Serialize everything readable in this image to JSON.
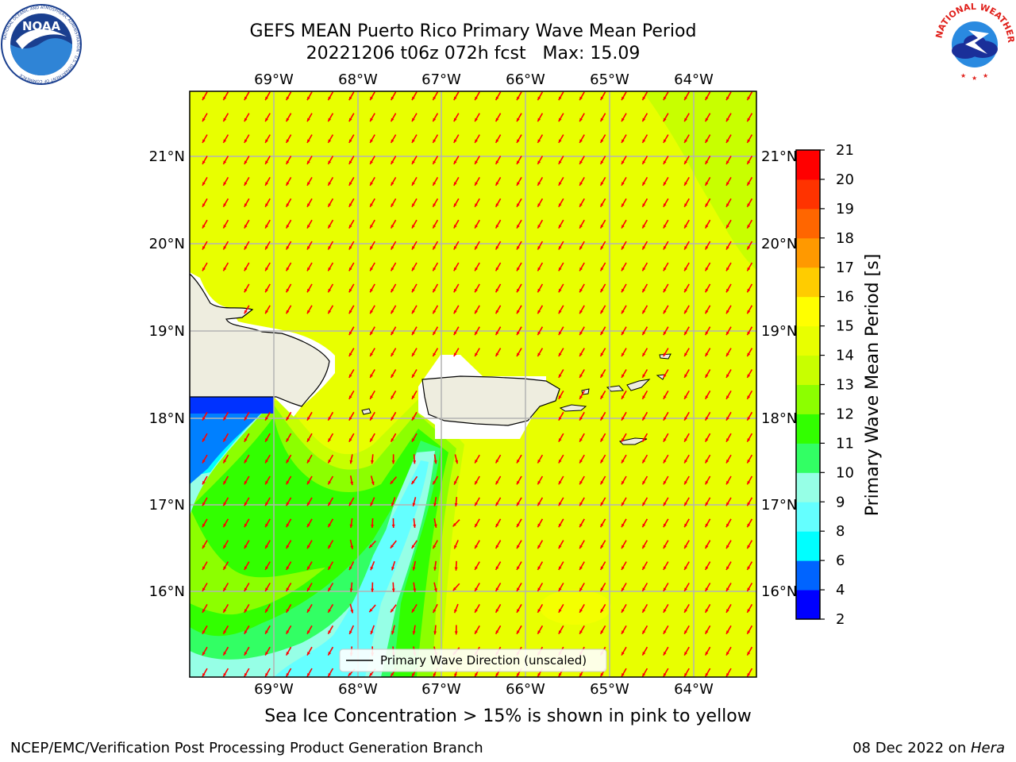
{
  "header": {
    "title_line1": "GEFS MEAN Puerto Rico Primary Wave Mean Period",
    "title_line2": "20221206 t06z 072h fcst   Max: 15.09"
  },
  "logos": {
    "left": {
      "name": "noaa-logo",
      "text": "NOAA",
      "ring_text": "NATIONAL OCEANIC AND ATMOSPHERIC ADMINISTRATION · U.S. DEPARTMENT OF COMMERCE"
    },
    "right": {
      "name": "nws-logo",
      "ring_text": "NATIONAL WEATHER SERVICE"
    }
  },
  "map": {
    "lon_ticks": [
      "69°W",
      "68°W",
      "67°W",
      "66°W",
      "65°W",
      "64°W"
    ],
    "lat_ticks": [
      "21°N",
      "20°N",
      "19°N",
      "18°N",
      "17°N",
      "16°N"
    ],
    "legend_label": "Primary Wave Direction (unscaled)",
    "colors": {
      "ocean_main": "#e8ff00",
      "land": "#eeeddf",
      "coast": "#000000",
      "grid": "#b4b4b4",
      "arrows": "#ff0000",
      "light_green": "#c8ff00",
      "green": "#8cff00",
      "bright_green": "#32ff00",
      "mint": "#32ff64",
      "pale_cyan": "#96ffe6",
      "cyan": "#64ffff",
      "aqua": "#00ffff",
      "blue_mid": "#0080ff",
      "blue_dark": "#0032ff"
    }
  },
  "colorbar": {
    "label": "Primary Wave Mean Period [s]",
    "ticks": [
      "2",
      "4",
      "6",
      "8",
      "9",
      "10",
      "11",
      "12",
      "13",
      "14",
      "15",
      "16",
      "17",
      "18",
      "19",
      "20",
      "21"
    ],
    "colors": [
      "#0000ff",
      "#0064ff",
      "#00ffff",
      "#64ffff",
      "#96ffe6",
      "#32ff64",
      "#32ff00",
      "#8cff00",
      "#c8ff00",
      "#e8ff00",
      "#ffff00",
      "#ffcc00",
      "#ff9900",
      "#ff6600",
      "#ff3300",
      "#ff0000"
    ]
  },
  "subtitle": "Sea Ice Concentration > 15% is shown in pink to yellow",
  "footer": {
    "left": "NCEP/EMC/Verification Post Processing Product Generation Branch",
    "right_date": "08 Dec 2022 on ",
    "right_host": "Hera"
  }
}
